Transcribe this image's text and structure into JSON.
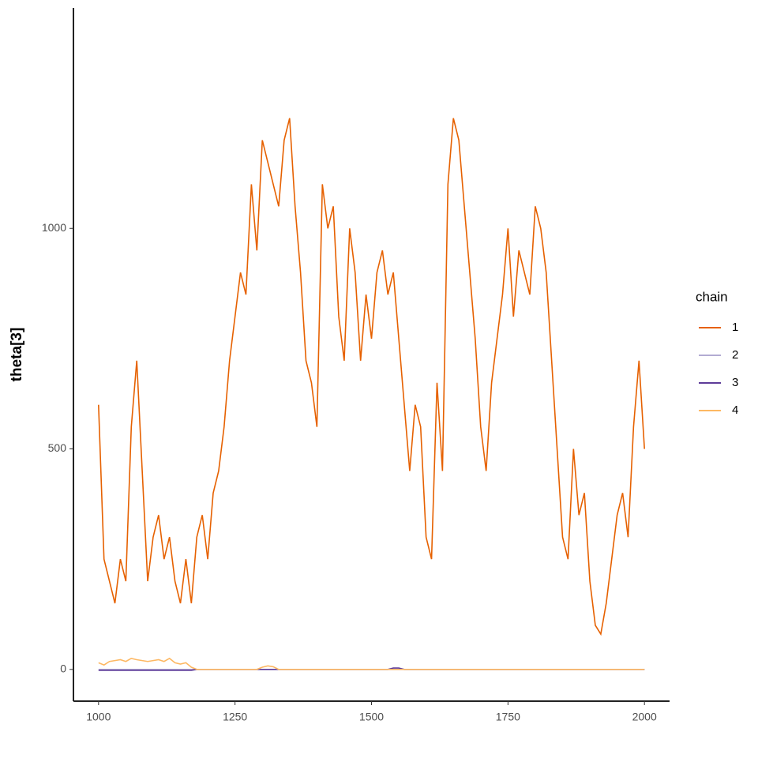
{
  "chart_data": {
    "type": "line",
    "y_label": "theta[3]",
    "legend_title": "chain",
    "legend": "right",
    "xlim": [
      954,
      2046
    ],
    "xticks": [
      1000,
      1250,
      1500,
      1750,
      2000
    ],
    "ylim": [
      -72,
      1500
    ],
    "yticks": [
      0,
      500,
      1000
    ],
    "x": [
      1000,
      1010,
      1020,
      1030,
      1040,
      1050,
      1060,
      1070,
      1080,
      1090,
      1100,
      1110,
      1120,
      1130,
      1140,
      1150,
      1160,
      1170,
      1180,
      1190,
      1200,
      1210,
      1220,
      1230,
      1240,
      1250,
      1260,
      1270,
      1280,
      1290,
      1300,
      1310,
      1320,
      1330,
      1340,
      1350,
      1360,
      1370,
      1380,
      1390,
      1400,
      1410,
      1420,
      1430,
      1440,
      1450,
      1460,
      1470,
      1480,
      1490,
      1500,
      1510,
      1520,
      1530,
      1540,
      1550,
      1560,
      1570,
      1580,
      1590,
      1600,
      1610,
      1620,
      1630,
      1640,
      1650,
      1660,
      1670,
      1680,
      1690,
      1700,
      1710,
      1720,
      1730,
      1740,
      1750,
      1760,
      1770,
      1780,
      1790,
      1800,
      1810,
      1820,
      1830,
      1840,
      1850,
      1860,
      1870,
      1880,
      1890,
      1900,
      1910,
      1920,
      1930,
      1940,
      1950,
      1960,
      1970,
      1980,
      1990,
      2000
    ],
    "series": [
      {
        "name": "1",
        "color": "#e66101",
        "values": [
          600,
          250,
          200,
          150,
          250,
          200,
          550,
          700,
          450,
          200,
          300,
          350,
          250,
          300,
          200,
          150,
          250,
          150,
          300,
          350,
          250,
          400,
          450,
          550,
          700,
          800,
          900,
          850,
          1100,
          950,
          1200,
          1150,
          1100,
          1050,
          1200,
          1250,
          1050,
          900,
          700,
          650,
          550,
          1100,
          1000,
          1050,
          800,
          700,
          1000,
          900,
          700,
          850,
          750,
          900,
          950,
          850,
          900,
          750,
          600,
          450,
          600,
          550,
          300,
          250,
          650,
          450,
          1100,
          1250,
          1200,
          1050,
          900,
          750,
          550,
          450,
          650,
          750,
          850,
          1000,
          800,
          950,
          900,
          850,
          1050,
          1000,
          900,
          700,
          500,
          300,
          250,
          500,
          350,
          400,
          200,
          100,
          80,
          150,
          250,
          350,
          400,
          300,
          550,
          700,
          500
        ]
      },
      {
        "name": "2",
        "color": "#b2abd2",
        "values": [
          0,
          0,
          0,
          0,
          0,
          0,
          0,
          0,
          0,
          0,
          0,
          0,
          0,
          0,
          0,
          0,
          0,
          0,
          0,
          0,
          0,
          0,
          0,
          0,
          0,
          0,
          0,
          0,
          0,
          0,
          0,
          0,
          0,
          0,
          0,
          0,
          0,
          0,
          0,
          0,
          0,
          0,
          0,
          0,
          0,
          0,
          0,
          0,
          0,
          0,
          0,
          0,
          0,
          0,
          0,
          0,
          0,
          0,
          0,
          0,
          0,
          0,
          0,
          0,
          0,
          0,
          0,
          0,
          0,
          0,
          0,
          0,
          0,
          0,
          0,
          0,
          0,
          0,
          0,
          0,
          0,
          0,
          0,
          0,
          0,
          0,
          0,
          0,
          0,
          0,
          0,
          0,
          0,
          0,
          0,
          0,
          0,
          0,
          0,
          0,
          0
        ]
      },
      {
        "name": "3",
        "color": "#5e3c99",
        "values": [
          -2,
          -2,
          -2,
          -2,
          -2,
          -2,
          -2,
          -2,
          -2,
          -2,
          -2,
          -2,
          -2,
          -2,
          -2,
          -2,
          -2,
          -2,
          0,
          0,
          0,
          0,
          0,
          0,
          0,
          0,
          0,
          0,
          0,
          0,
          0,
          0,
          0,
          0,
          0,
          0,
          0,
          0,
          0,
          0,
          0,
          0,
          0,
          0,
          0,
          0,
          0,
          0,
          0,
          0,
          0,
          0,
          0,
          0,
          3,
          3,
          0,
          0,
          0,
          0,
          0,
          0,
          0,
          0,
          0,
          0,
          0,
          0,
          0,
          0,
          0,
          0,
          0,
          0,
          0,
          0,
          0,
          0,
          0,
          0,
          0,
          0,
          0,
          0,
          0,
          0,
          0,
          0,
          0,
          0,
          0,
          0,
          0,
          0,
          0,
          0,
          0,
          0,
          0,
          0,
          0
        ]
      },
      {
        "name": "4",
        "color": "#fdb863",
        "values": [
          15,
          10,
          18,
          20,
          22,
          18,
          25,
          22,
          20,
          18,
          20,
          22,
          18,
          25,
          15,
          12,
          15,
          5,
          0,
          0,
          0,
          0,
          0,
          0,
          0,
          0,
          0,
          0,
          0,
          0,
          5,
          8,
          6,
          0,
          0,
          0,
          0,
          0,
          0,
          0,
          0,
          0,
          0,
          0,
          0,
          0,
          0,
          0,
          0,
          0,
          0,
          0,
          0,
          0,
          0,
          0,
          0,
          0,
          0,
          0,
          0,
          0,
          0,
          0,
          0,
          0,
          0,
          0,
          0,
          0,
          0,
          0,
          0,
          0,
          0,
          0,
          0,
          0,
          0,
          0,
          0,
          0,
          0,
          0,
          0,
          0,
          0,
          0,
          0,
          0,
          0,
          0,
          0,
          0,
          0,
          0,
          0,
          0,
          0,
          0,
          0
        ]
      }
    ]
  }
}
